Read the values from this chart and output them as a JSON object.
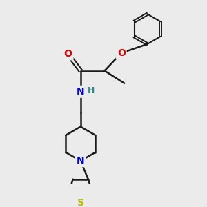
{
  "background_color": "#ebebeb",
  "bond_color": "#1a1a1a",
  "atom_colors": {
    "O": "#dd0000",
    "N": "#0000cc",
    "S": "#bbbb00",
    "H": "#338888",
    "C": "#1a1a1a"
  },
  "figsize": [
    3.0,
    3.0
  ],
  "dpi": 100
}
